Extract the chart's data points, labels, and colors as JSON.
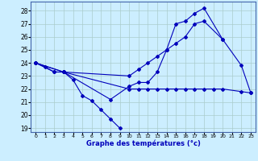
{
  "xlabel": "Graphe des températures (°c)",
  "background_color": "#cceeff",
  "grid_color": "#aacccc",
  "line_color": "#0000bb",
  "ylim": [
    18.7,
    28.7
  ],
  "xlim": [
    -0.5,
    23.5
  ],
  "yticks": [
    19,
    20,
    21,
    22,
    23,
    24,
    25,
    26,
    27,
    28
  ],
  "xticks": [
    0,
    1,
    2,
    3,
    4,
    5,
    6,
    7,
    8,
    9,
    10,
    11,
    12,
    13,
    14,
    15,
    16,
    17,
    18,
    19,
    20,
    21,
    22,
    23
  ],
  "line1_x": [
    0,
    1,
    2,
    3,
    4,
    5,
    6,
    7,
    8,
    9
  ],
  "line1_y": [
    24.0,
    23.7,
    23.3,
    23.3,
    22.7,
    21.5,
    21.1,
    20.4,
    19.7,
    19.0
  ],
  "line2_x": [
    0,
    2,
    3,
    8,
    10,
    11,
    12,
    13,
    14,
    15,
    16,
    17,
    18,
    20,
    22,
    23
  ],
  "line2_y": [
    24.0,
    23.3,
    23.3,
    21.2,
    22.2,
    22.5,
    22.5,
    23.3,
    25.0,
    27.0,
    27.2,
    27.8,
    28.2,
    25.8,
    23.8,
    21.7
  ],
  "line3_x": [
    0,
    3,
    10,
    11,
    12,
    13,
    14,
    15,
    16,
    17,
    18,
    19,
    20,
    22,
    23
  ],
  "line3_y": [
    24.0,
    23.3,
    22.0,
    22.0,
    22.0,
    22.0,
    22.0,
    22.0,
    22.0,
    22.0,
    22.0,
    22.0,
    22.0,
    21.8,
    21.7
  ],
  "line4_x": [
    0,
    3,
    10,
    11,
    12,
    13,
    14,
    15,
    16,
    17,
    18,
    20
  ],
  "line4_y": [
    24.0,
    23.3,
    23.0,
    23.5,
    24.0,
    24.5,
    25.0,
    25.5,
    26.0,
    27.0,
    27.2,
    25.8
  ]
}
